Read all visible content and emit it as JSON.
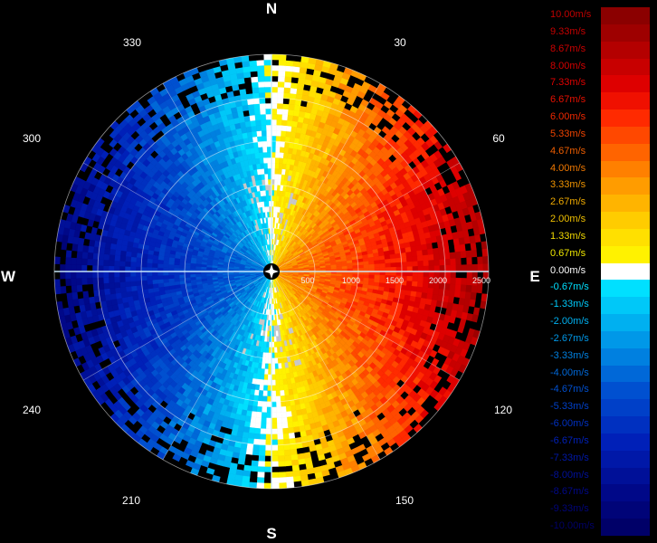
{
  "radar": {
    "cardinals": {
      "north": "N",
      "east": "E",
      "south": "S",
      "west": "W"
    },
    "azimuth_labels": [
      "30",
      "60",
      "120",
      "150",
      "210",
      "240",
      "300",
      "330"
    ],
    "range_labels": [
      "500",
      "1000",
      "1500",
      "2000",
      "2500"
    ],
    "colors": {
      "background": "#000000",
      "grid": "#ffffff",
      "no_data": "#000000",
      "clutter": "#c8c8c8"
    }
  },
  "legend": {
    "entries": [
      {
        "label": "10.00m/s",
        "color": "#8b0000",
        "text_color": "#c00000"
      },
      {
        "label": "9.33m/s",
        "color": "#9e0000",
        "text_color": "#c40000"
      },
      {
        "label": "8.67m/s",
        "color": "#b40000",
        "text_color": "#cc0000"
      },
      {
        "label": "8.00m/s",
        "color": "#c80000",
        "text_color": "#d40000"
      },
      {
        "label": "7.33m/s",
        "color": "#de0000",
        "text_color": "#e00000"
      },
      {
        "label": "6.67m/s",
        "color": "#f01000",
        "text_color": "#e81000"
      },
      {
        "label": "6.00m/s",
        "color": "#ff2a00",
        "text_color": "#f02800"
      },
      {
        "label": "5.33m/s",
        "color": "#ff4800",
        "text_color": "#f04400"
      },
      {
        "label": "4.67m/s",
        "color": "#ff6400",
        "text_color": "#f05e00"
      },
      {
        "label": "4.00m/s",
        "color": "#ff8000",
        "text_color": "#f07800"
      },
      {
        "label": "3.33m/s",
        "color": "#ff9c00",
        "text_color": "#f09400"
      },
      {
        "label": "2.67m/s",
        "color": "#ffb400",
        "text_color": "#f0aa00"
      },
      {
        "label": "2.00m/s",
        "color": "#ffcc00",
        "text_color": "#f0c000"
      },
      {
        "label": "1.33m/s",
        "color": "#ffe000",
        "text_color": "#f0d800"
      },
      {
        "label": "0.67m/s",
        "color": "#fff200",
        "text_color": "#f0e800"
      },
      {
        "label": "0.00m/s",
        "color": "#ffffff",
        "text_color": "#ffffff"
      },
      {
        "label": "-0.67m/s",
        "color": "#00e0ff",
        "text_color": "#00e0ff"
      },
      {
        "label": "-1.33m/s",
        "color": "#00c8f8",
        "text_color": "#00c8f8"
      },
      {
        "label": "-2.00m/s",
        "color": "#00b0f0",
        "text_color": "#00b0f0"
      },
      {
        "label": "-2.67m/s",
        "color": "#0098e8",
        "text_color": "#0098e8"
      },
      {
        "label": "-3.33m/s",
        "color": "#0080e0",
        "text_color": "#0080e0"
      },
      {
        "label": "-4.00m/s",
        "color": "#0068d8",
        "text_color": "#0068d8"
      },
      {
        "label": "-4.67m/s",
        "color": "#0050d0",
        "text_color": "#0050d0"
      },
      {
        "label": "-5.33m/s",
        "color": "#0040c8",
        "text_color": "#0040c8"
      },
      {
        "label": "-6.00m/s",
        "color": "#0030c0",
        "text_color": "#0030c0"
      },
      {
        "label": "-6.67m/s",
        "color": "#0020b8",
        "text_color": "#0020b8"
      },
      {
        "label": "-7.33m/s",
        "color": "#0018a8",
        "text_color": "#0018a8"
      },
      {
        "label": "-8.00m/s",
        "color": "#001098",
        "text_color": "#001098"
      },
      {
        "label": "-8.67m/s",
        "color": "#000888",
        "text_color": "#000888"
      },
      {
        "label": "-9.33m/s",
        "color": "#000478",
        "text_color": "#000478"
      },
      {
        "label": "-10.00m/s",
        "color": "#000068",
        "text_color": "#000068"
      }
    ]
  }
}
